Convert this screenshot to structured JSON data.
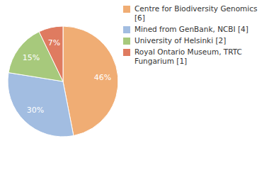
{
  "chart_data": {
    "type": "pie",
    "categories": [
      "Centre for Biodiversity Genomics [6]",
      "Mined from GenBank, NCBI [4]",
      "University of Helsinki [2]",
      "Royal Ontario Museum, TRTC Fungarium [1]"
    ],
    "values": [
      46,
      30,
      15,
      7
    ],
    "value_labels": [
      "46%",
      "30%",
      "15%",
      "7%"
    ],
    "colors": [
      "#f0ad74",
      "#a2bde1",
      "#a7c97c",
      "#df7b60"
    ],
    "data_labels": true,
    "legend": "right"
  }
}
